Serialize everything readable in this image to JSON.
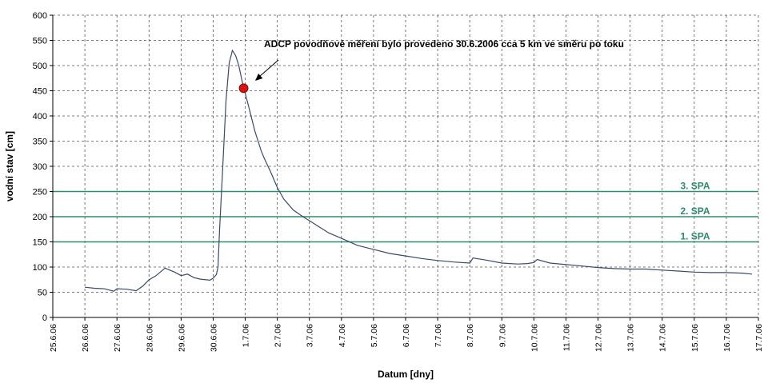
{
  "chart_data": {
    "type": "line",
    "title": "",
    "xlabel": "Datum [dny]",
    "ylabel": "vodní stav [cm]",
    "ylim": [
      0,
      600
    ],
    "yticks": [
      0,
      50,
      100,
      150,
      200,
      250,
      300,
      350,
      400,
      450,
      500,
      550,
      600
    ],
    "x_tick_labels": [
      "25.6.06",
      "26.6.06",
      "27.6.06",
      "28.6.06",
      "29.6.06",
      "30.6.06",
      "1.7.06",
      "2.7.06",
      "3.7.06",
      "4.7.06",
      "5.7.06",
      "6.7.06",
      "7.7.06",
      "8.7.06",
      "9.7.06",
      "10.7.06",
      "11.7.06",
      "12.7.06",
      "13.7.06",
      "14.7.06",
      "15.7.06",
      "16.7.06",
      "17.7.06"
    ],
    "grid": true,
    "series": [
      {
        "x": [
          1.0,
          1.3,
          1.6,
          1.9,
          2.0,
          2.3,
          2.6,
          2.8,
          3.0,
          3.2,
          3.5,
          3.8,
          4.0,
          4.2,
          4.4,
          4.6,
          4.9,
          5.0,
          5.1,
          5.15,
          5.2,
          5.3,
          5.4,
          5.5,
          5.6,
          5.7,
          5.8,
          5.9,
          6.0,
          6.1,
          6.2,
          6.3,
          6.4,
          6.5,
          6.6,
          6.8,
          7.0,
          7.2,
          7.5,
          7.8,
          8.0,
          8.3,
          8.6,
          9.0,
          9.5,
          10.0,
          10.5,
          11.0,
          11.5,
          12.0,
          12.5,
          13.0,
          13.1,
          13.5,
          14.0,
          14.5,
          14.8,
          15.0,
          15.1,
          15.5,
          16.0,
          16.5,
          17.0,
          17.5,
          18.0,
          18.5,
          19.0,
          19.5,
          20.0,
          20.5,
          21.0,
          21.5,
          21.8
        ],
        "y": [
          60,
          58,
          57,
          52,
          57,
          56,
          53,
          62,
          75,
          82,
          98,
          90,
          83,
          86,
          79,
          76,
          74,
          78,
          85,
          100,
          175,
          300,
          430,
          505,
          530,
          520,
          500,
          470,
          445,
          420,
          395,
          370,
          350,
          330,
          315,
          288,
          258,
          235,
          213,
          200,
          192,
          180,
          168,
          157,
          143,
          135,
          127,
          122,
          117,
          113,
          110,
          108,
          118,
          114,
          108,
          106,
          107,
          109,
          115,
          108,
          105,
          102,
          99,
          97,
          96,
          96,
          94,
          92,
          90,
          89,
          89,
          88,
          86
        ]
      }
    ],
    "reference_lines": [
      {
        "label": "3. SPA",
        "y": 250,
        "color": "#2e8b6e"
      },
      {
        "label": "2. SPA",
        "y": 200,
        "color": "#2e8b6e"
      },
      {
        "label": "1. SPA",
        "y": 150,
        "color": "#2e8b6e"
      }
    ],
    "marker": {
      "x": 5.95,
      "y": 455,
      "color": "#dd1111"
    },
    "annotation": "ADCP povodňové měření bylo provedeno 30.6.2006 cca 5 km ve směru po toku",
    "line_color": "#3a4a6a",
    "grid_color": "#555555"
  }
}
